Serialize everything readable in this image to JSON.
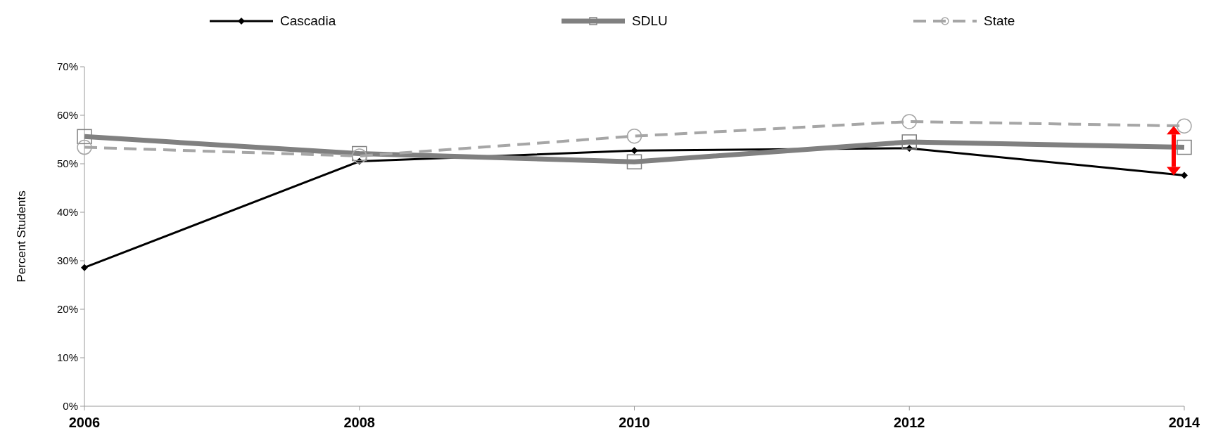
{
  "chart_data": {
    "type": "line",
    "ylabel": "Percent  Students",
    "x": [
      2006,
      2008,
      2010,
      2012,
      2014
    ],
    "xlim": [
      2006,
      2014
    ],
    "xticks": [
      2006,
      2008,
      2010,
      2012,
      2014
    ],
    "ylim": [
      0,
      70
    ],
    "yticks": [
      {
        "value": 0,
        "label": "0%"
      },
      {
        "value": 10,
        "label": "10%"
      },
      {
        "value": 20,
        "label": "20%"
      },
      {
        "value": 30,
        "label": "30%"
      },
      {
        "value": 40,
        "label": "40%"
      },
      {
        "value": 50,
        "label": "50%"
      },
      {
        "value": 60,
        "label": "60%"
      },
      {
        "value": 70,
        "label": "70%"
      }
    ],
    "legend": "top",
    "grid": false,
    "series": [
      {
        "name": "Cascadia",
        "color": "#000000",
        "marker": "diamond",
        "line_style": "solid",
        "values": [
          28.6,
          50.5,
          52.7,
          53.2,
          47.6
        ]
      },
      {
        "name": "SDLU",
        "color": "#808080",
        "marker": "square",
        "line_style": "solid",
        "values": [
          55.6,
          52.1,
          50.4,
          54.5,
          53.4
        ]
      },
      {
        "name": "State",
        "color": "#a6a6a6",
        "marker": "circle",
        "line_style": "dashed",
        "values": [
          53.4,
          51.6,
          55.7,
          58.7,
          57.8
        ]
      }
    ]
  }
}
